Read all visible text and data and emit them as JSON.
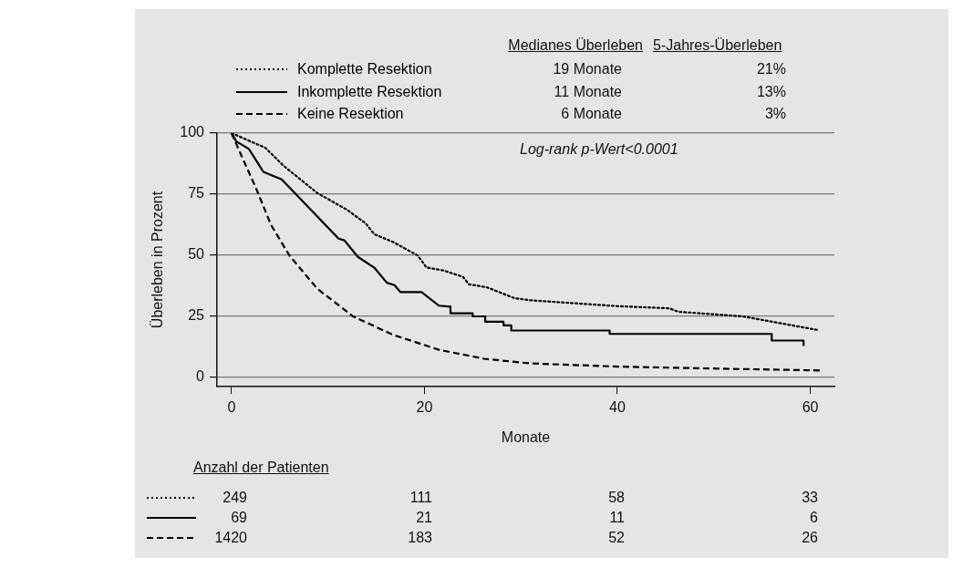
{
  "chart_data": {
    "type": "line",
    "xlabel": "Monate",
    "ylabel": "Überleben in Prozent",
    "xlim": [
      -1.5,
      62.5
    ],
    "xticks": [
      0,
      20,
      40,
      60
    ],
    "ylim": [
      -4,
      100
    ],
    "yticks": [
      0,
      25,
      50,
      75,
      100
    ],
    "grid": "y",
    "legend": "top left",
    "marker": "none",
    "series": [
      {
        "name": "Komplette Resektion",
        "color": "#000000",
        "line_style": "dotted",
        "x": [
          0,
          3.5,
          5.4,
          8.9,
          12,
          13.9,
          14.8,
          16.7,
          19.3,
          20.2,
          22,
          24,
          24.6,
          26.5,
          29.3,
          31,
          40,
          45.4,
          46.3,
          53,
          60.8
        ],
        "values": [
          100,
          94,
          86.6,
          75.4,
          68.5,
          63,
          58.5,
          55.4,
          49.8,
          44.9,
          43.6,
          41,
          38,
          36.7,
          32.3,
          31.4,
          29,
          28.1,
          26.7,
          24.8,
          19.2
        ]
      },
      {
        "name": "Inkomplette Resektion",
        "color": "#000000",
        "line_style": "solid",
        "x": [
          0,
          0.5,
          1.8,
          2.7,
          3.3,
          5.2,
          11.1,
          11.7,
          13.1,
          14.8,
          16.1,
          16.9,
          17.5,
          19.7,
          21.5,
          22.7,
          22.7,
          25,
          25,
          26.3,
          26.3,
          28.2,
          28.2,
          29,
          29,
          39.2,
          39.2,
          56,
          56,
          59.3,
          59.3
        ],
        "values": [
          100,
          96.6,
          93.5,
          87.9,
          84.1,
          81,
          56.7,
          56,
          49.2,
          44.8,
          38.6,
          37.6,
          34.8,
          34.8,
          29.2,
          28.8,
          26.1,
          26.1,
          24.8,
          24.8,
          22.6,
          22.6,
          21.1,
          21.1,
          19,
          19,
          17.6,
          17.6,
          14.9,
          14.9,
          13
        ]
      },
      {
        "name": "Keine Resektion",
        "color": "#000000",
        "line_style": "dashed",
        "x": [
          0,
          1,
          2.55,
          4.1,
          6,
          8.9,
          12.6,
          16.7,
          21.5,
          26.2,
          31,
          40,
          50,
          61.2
        ],
        "values": [
          100,
          91,
          77.3,
          62.3,
          49.8,
          36.1,
          24.8,
          17.3,
          11.1,
          7.4,
          5.5,
          4.2,
          3.4,
          2.6
        ]
      }
    ],
    "annotations": [
      "Medianes Überleben",
      "5-Jahres-Überleben",
      "19 Monate",
      "11 Monate",
      "6 Monate",
      "21%",
      "13%",
      "3%",
      "Log-rank p-Wert<0.0001",
      "Anzahl der Patienten",
      "249",
      "111",
      "58",
      "33",
      "69",
      "21",
      "11",
      "6",
      "1420",
      "183",
      "52",
      "26"
    ]
  }
}
